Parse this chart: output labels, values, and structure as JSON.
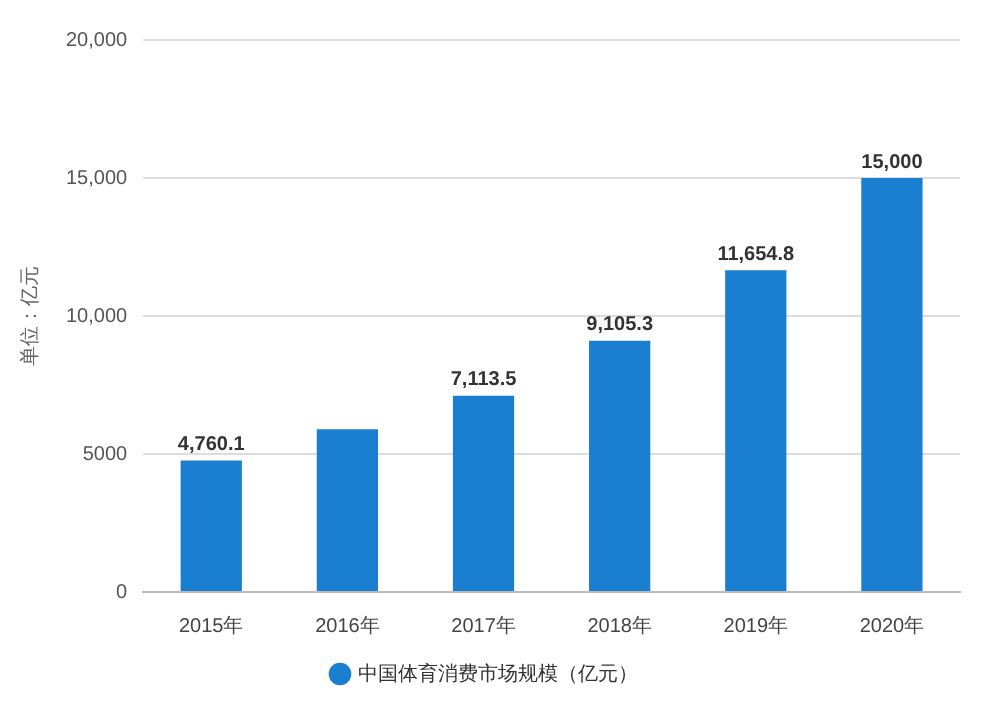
{
  "chart_data": {
    "type": "bar",
    "ylabel": "单位：亿元",
    "categories": [
      "2015年",
      "2016年",
      "2017年",
      "2018年",
      "2019年",
      "2020年"
    ],
    "series": [
      {
        "name": "中国体育消费市场规模（亿元）",
        "color": "#1a7fd0",
        "values": [
          4760.1,
          5900,
          7113.5,
          9105.3,
          11654.8,
          15000
        ],
        "value_labels": [
          "4,760.1",
          null,
          "7,113.5",
          "9,105.3",
          "11,654.8",
          "15,000"
        ]
      }
    ],
    "ylim": [
      0,
      20000
    ],
    "yticks": [
      0,
      {
        "value": 5000,
        "label": "5000"
      },
      {
        "value": 10000,
        "label": "10,000"
      },
      {
        "value": 15000,
        "label": "15,000"
      },
      {
        "value": 20000,
        "label": "20,000"
      }
    ],
    "grid": "y",
    "legend": "bottom"
  }
}
